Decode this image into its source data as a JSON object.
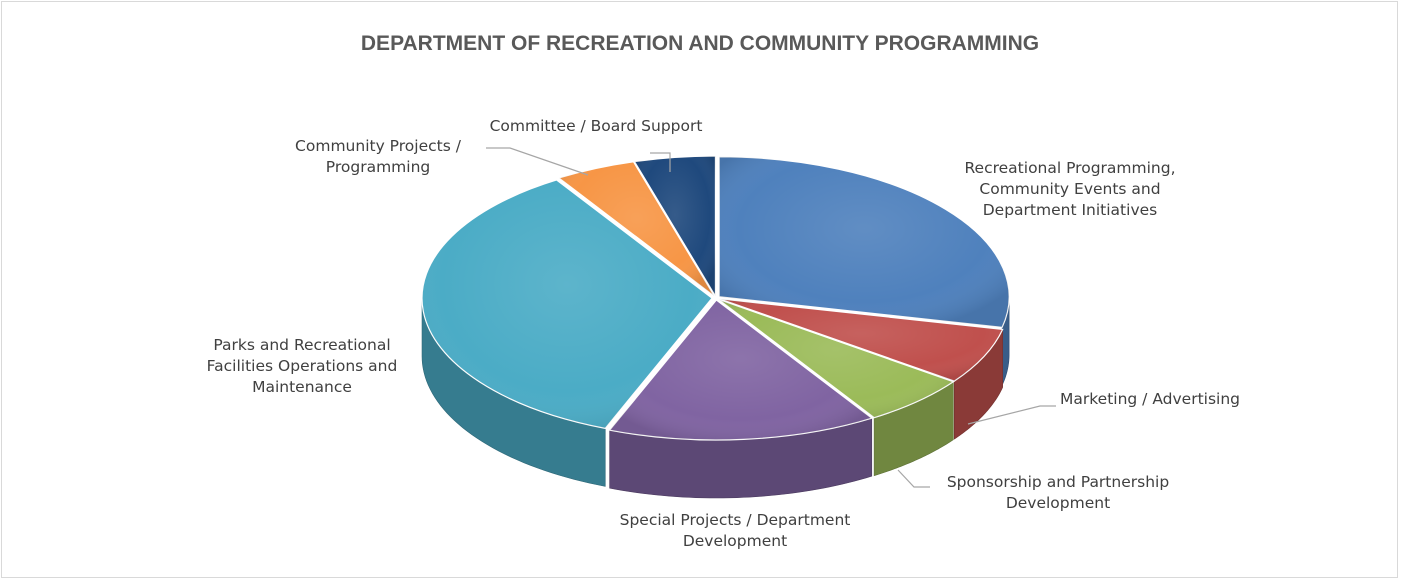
{
  "chart_data": {
    "type": "pie",
    "style": "3d-exploded-tilted",
    "title": "DEPARTMENT OF RECREATION AND COMMUNITY PROGRAMMING",
    "legend": "none",
    "slices": [
      {
        "label": "Recreational Programming, Community Events and Department Initiatives",
        "label_lines": [
          "Recreational Programming,",
          "Community Events and",
          "Department Initiatives"
        ],
        "value": 28.5,
        "color": "#4F81BD"
      },
      {
        "label": "Marketing / Advertising",
        "label_lines": [
          "Marketing / Advertising"
        ],
        "value": 6.5,
        "color": "#C0504D"
      },
      {
        "label": "Sponsorship and Partnership Development",
        "label_lines": [
          "Sponsorship and Partnership",
          "Development"
        ],
        "value": 6.0,
        "color": "#9BBB59"
      },
      {
        "label": "Special Projects / Department Development",
        "label_lines": [
          "Special Projects / Department",
          "Development"
        ],
        "value": 15.0,
        "color": "#8064A2"
      },
      {
        "label": "Parks and Recreational Facilities Operations and Maintenance",
        "label_lines": [
          "Parks and Recreational",
          "Facilities Operations and",
          "Maintenance"
        ],
        "value": 35.0,
        "color": "#4BACC6"
      },
      {
        "label": "Community Projects / Programming",
        "label_lines": [
          "Community Projects /",
          "Programming"
        ],
        "value": 4.5,
        "color": "#F79646"
      },
      {
        "label": "Committee / Board Support",
        "label_lines": [
          "Committee / Board Support"
        ],
        "value": 4.5,
        "color": "#1F497D"
      }
    ]
  }
}
